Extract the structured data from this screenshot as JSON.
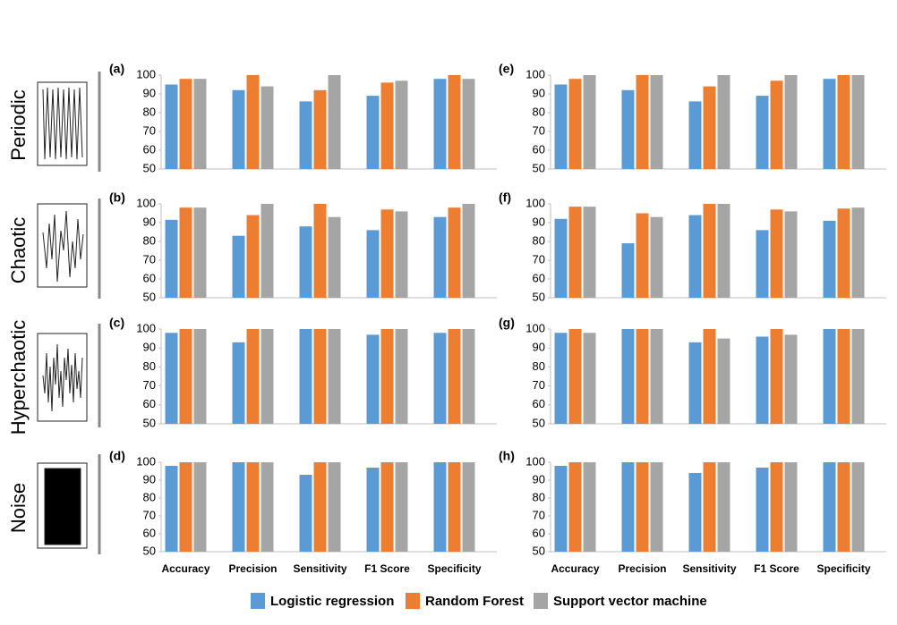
{
  "categories": [
    "Accuracy",
    "Precision",
    "Sensitivity",
    "F1 Score",
    "Specificity"
  ],
  "legend": [
    {
      "name": "Logistic regression",
      "color": "#5b9bd5"
    },
    {
      "name": "Random Forest",
      "color": "#ed7d31"
    },
    {
      "name": "Support vector machine",
      "color": "#a5a5a5"
    }
  ],
  "row_labels": [
    "Periodic",
    "Chaotic",
    "Hyperchaotic",
    "Noise"
  ],
  "chart_data": [
    {
      "type": "bar",
      "label": "(a)",
      "ylim": [
        50,
        100
      ],
      "yticks": [
        50,
        60,
        70,
        80,
        90,
        100
      ],
      "series": [
        {
          "values": [
            95,
            92,
            86,
            89,
            98
          ]
        },
        {
          "values": [
            98,
            100,
            92,
            96,
            100
          ]
        },
        {
          "values": [
            98,
            94,
            100,
            97,
            98
          ]
        }
      ]
    },
    {
      "type": "bar",
      "label": "(b)",
      "ylim": [
        50,
        100
      ],
      "yticks": [
        50,
        60,
        70,
        80,
        90,
        100
      ],
      "series": [
        {
          "values": [
            91.5,
            83,
            88,
            86,
            93
          ]
        },
        {
          "values": [
            98,
            94,
            100,
            97,
            98
          ]
        },
        {
          "values": [
            98,
            100,
            93,
            96,
            100
          ]
        }
      ]
    },
    {
      "type": "bar",
      "label": "(c)",
      "ylim": [
        50,
        100
      ],
      "yticks": [
        50,
        60,
        70,
        80,
        90,
        100
      ],
      "series": [
        {
          "values": [
            98,
            93,
            100,
            97,
            98
          ]
        },
        {
          "values": [
            100,
            100,
            100,
            100,
            100
          ]
        },
        {
          "values": [
            100,
            100,
            100,
            100,
            100
          ]
        }
      ]
    },
    {
      "type": "bar",
      "label": "(d)",
      "ylim": [
        50,
        100
      ],
      "yticks": [
        50,
        60,
        70,
        80,
        90,
        100
      ],
      "series": [
        {
          "values": [
            98,
            100,
            93,
            97,
            100
          ]
        },
        {
          "values": [
            100,
            100,
            100,
            100,
            100
          ]
        },
        {
          "values": [
            100,
            100,
            100,
            100,
            100
          ]
        }
      ]
    },
    {
      "type": "bar",
      "label": "(e)",
      "ylim": [
        50,
        100
      ],
      "yticks": [
        50,
        60,
        70,
        80,
        90,
        100
      ],
      "series": [
        {
          "values": [
            95,
            92,
            86,
            89,
            98
          ]
        },
        {
          "values": [
            98,
            100,
            94,
            97,
            100
          ]
        },
        {
          "values": [
            100,
            100,
            100,
            100,
            100
          ]
        }
      ]
    },
    {
      "type": "bar",
      "label": "(f)",
      "ylim": [
        50,
        100
      ],
      "yticks": [
        50,
        60,
        70,
        80,
        90,
        100
      ],
      "series": [
        {
          "values": [
            92,
            79,
            94,
            86,
            91
          ]
        },
        {
          "values": [
            98.5,
            95,
            100,
            97,
            97.5
          ]
        },
        {
          "values": [
            98.5,
            93,
            100,
            96,
            98
          ]
        }
      ]
    },
    {
      "type": "bar",
      "label": "(g)",
      "ylim": [
        50,
        100
      ],
      "yticks": [
        50,
        60,
        70,
        80,
        90,
        100
      ],
      "series": [
        {
          "values": [
            98,
            100,
            93,
            96,
            100
          ]
        },
        {
          "values": [
            100,
            100,
            100,
            100,
            100
          ]
        },
        {
          "values": [
            98,
            100,
            95,
            97,
            100
          ]
        }
      ]
    },
    {
      "type": "bar",
      "label": "(h)",
      "ylim": [
        50,
        100
      ],
      "yticks": [
        50,
        60,
        70,
        80,
        90,
        100
      ],
      "series": [
        {
          "values": [
            98,
            100,
            94,
            97,
            100
          ]
        },
        {
          "values": [
            100,
            100,
            100,
            100,
            100
          ]
        },
        {
          "values": [
            100,
            100,
            100,
            100,
            100
          ]
        }
      ]
    }
  ]
}
